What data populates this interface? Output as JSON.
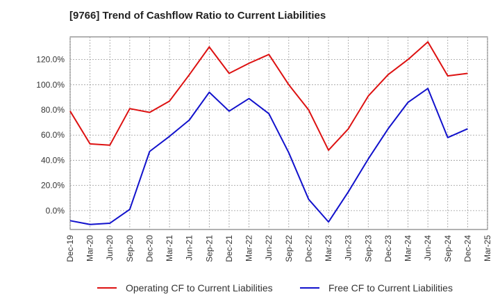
{
  "chart_data": {
    "type": "line",
    "title": "[9766]  Trend of Cashflow Ratio to Current Liabilities",
    "xlabel": "",
    "ylabel": "",
    "x": [
      "Dec-19",
      "Mar-20",
      "Jun-20",
      "Sep-20",
      "Dec-20",
      "Mar-21",
      "Jun-21",
      "Sep-21",
      "Dec-21",
      "Mar-22",
      "Jun-22",
      "Sep-22",
      "Dec-22",
      "Mar-23",
      "Jun-23",
      "Sep-23",
      "Dec-23",
      "Mar-24",
      "Jun-24",
      "Sep-24",
      "Dec-24",
      "Mar-25"
    ],
    "ylim": [
      -15,
      138
    ],
    "yticks": [
      0,
      20,
      40,
      60,
      80,
      100,
      120
    ],
    "ytick_labels": [
      "0.0%",
      "20.0%",
      "40.0%",
      "60.0%",
      "80.0%",
      "100.0%",
      "120.0%"
    ],
    "grid": true,
    "legend_position": "bottom",
    "series": [
      {
        "name": "Operating CF to Current Liabilities",
        "color": "#dd1111",
        "values": [
          79,
          53,
          52,
          81,
          78,
          87,
          108,
          130,
          109,
          117,
          124,
          100,
          80,
          48,
          65,
          91,
          108,
          120,
          134,
          107,
          109,
          null
        ]
      },
      {
        "name": "Free CF to Current Liabilities",
        "color": "#1111cc",
        "values": [
          -8,
          -11,
          -10,
          1,
          47,
          59,
          72,
          94,
          79,
          89,
          77,
          46,
          9,
          -9,
          15,
          41,
          65,
          86,
          97,
          58,
          65,
          null
        ]
      }
    ]
  }
}
